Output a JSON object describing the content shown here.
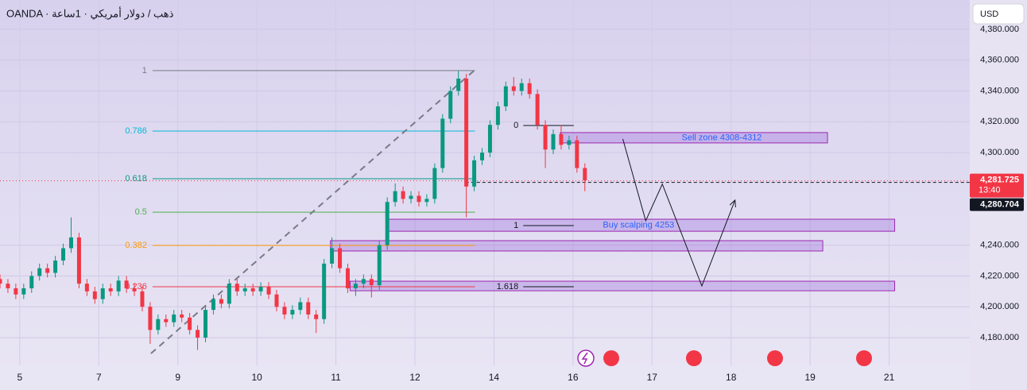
{
  "header": {
    "symbol": "OANDA · ذهب / دولار أمريكي · 1ساعة",
    "currency": "USD"
  },
  "chart_data": {
    "type": "candlestick",
    "up_color": "#089981",
    "down_color": "#f23645",
    "xlim": [
      -0.25,
      12.02
    ],
    "ylim": [
      4162,
      4399
    ],
    "xticks": [
      {
        "value": 0,
        "label": "5"
      },
      {
        "value": 1,
        "label": "7"
      },
      {
        "value": 2,
        "label": "9"
      },
      {
        "value": 3,
        "label": "10"
      },
      {
        "value": 4,
        "label": "11"
      },
      {
        "value": 5,
        "label": "12"
      },
      {
        "value": 6,
        "label": "14"
      },
      {
        "value": 7,
        "label": "16"
      },
      {
        "value": 8,
        "label": "17"
      },
      {
        "value": 9,
        "label": "18"
      },
      {
        "value": 10,
        "label": "19"
      },
      {
        "value": 11,
        "label": "21"
      }
    ],
    "yticks": [
      {
        "value": 4180,
        "label": "4,180.000"
      },
      {
        "value": 4200,
        "label": "4,200.000"
      },
      {
        "value": 4220,
        "label": "4,220.000"
      },
      {
        "value": 4240,
        "label": "4,240.000"
      },
      {
        "value": 4300,
        "label": "4,300.000"
      },
      {
        "value": 4320,
        "label": "4,320.000"
      },
      {
        "value": 4340,
        "label": "4,340.000"
      },
      {
        "value": 4360,
        "label": "4,360.000"
      },
      {
        "value": 4380,
        "label": "4,380.000"
      }
    ],
    "grid": true,
    "x": [
      -0.25,
      -0.15,
      -0.05,
      0.05,
      0.15,
      0.25,
      0.35,
      0.45,
      0.55,
      0.65,
      0.75,
      0.85,
      0.95,
      1.05,
      1.15,
      1.25,
      1.35,
      1.45,
      1.55,
      1.65,
      1.75,
      1.85,
      1.95,
      2.05,
      2.15,
      2.25,
      2.35,
      2.45,
      2.55,
      2.65,
      2.75,
      2.85,
      2.95,
      3.05,
      3.15,
      3.25,
      3.35,
      3.45,
      3.55,
      3.65,
      3.75,
      3.85,
      3.95,
      4.05,
      4.15,
      4.25,
      4.35,
      4.45,
      4.55,
      4.65,
      4.75,
      4.85,
      4.95,
      5.05,
      5.15,
      5.25,
      5.35,
      5.45,
      5.55,
      5.65,
      5.75,
      5.85,
      5.95,
      6.05,
      6.15,
      6.25,
      6.35,
      6.45,
      6.55,
      6.65,
      6.75,
      6.85,
      6.95,
      7.05,
      7.15
    ],
    "open": [
      4218,
      4215,
      4212,
      4208,
      4212,
      4220,
      4225,
      4222,
      4230,
      4238,
      4245,
      4215,
      4210,
      4205,
      4212,
      4210,
      4217,
      4212,
      4210,
      4200,
      4185,
      4192,
      4190,
      4195,
      4193,
      4185,
      4180,
      4198,
      4205,
      4202,
      4215,
      4210,
      4212,
      4210,
      4213,
      4208,
      4200,
      4195,
      4198,
      4203,
      4195,
      4192,
      4228,
      4238,
      4225,
      4212,
      4215,
      4218,
      4214,
      4240,
      4268,
      4275,
      4270,
      4272,
      4268,
      4270,
      4290,
      4322,
      4340,
      4348,
      4278,
      4295,
      4300,
      4318,
      4330,
      4343,
      4340,
      4345,
      4338,
      4318,
      4302,
      4312,
      4305,
      4308,
      4290
    ],
    "high": [
      4221,
      4218,
      4215,
      4215,
      4223,
      4228,
      4228,
      4233,
      4241,
      4258,
      4248,
      4218,
      4213,
      4215,
      4215,
      4220,
      4220,
      4215,
      4213,
      4203,
      4195,
      4195,
      4198,
      4198,
      4196,
      4188,
      4201,
      4208,
      4208,
      4218,
      4218,
      4215,
      4215,
      4216,
      4216,
      4211,
      4203,
      4201,
      4206,
      4206,
      4198,
      4231,
      4245,
      4241,
      4228,
      4218,
      4221,
      4221,
      4243,
      4271,
      4280,
      4278,
      4275,
      4275,
      4273,
      4293,
      4325,
      4343,
      4353,
      4351,
      4298,
      4303,
      4321,
      4333,
      4346,
      4349,
      4348,
      4348,
      4341,
      4321,
      4315,
      4318,
      4311,
      4311,
      4293
    ],
    "low": [
      4212,
      4209,
      4205,
      4205,
      4209,
      4217,
      4219,
      4219,
      4227,
      4235,
      4212,
      4207,
      4202,
      4202,
      4207,
      4207,
      4209,
      4207,
      4197,
      4176,
      4182,
      4187,
      4187,
      4190,
      4182,
      4172,
      4177,
      4195,
      4199,
      4199,
      4207,
      4207,
      4207,
      4207,
      4205,
      4197,
      4192,
      4192,
      4195,
      4192,
      4183,
      4189,
      4225,
      4222,
      4209,
      4207,
      4212,
      4206,
      4211,
      4237,
      4265,
      4267,
      4267,
      4265,
      4265,
      4267,
      4287,
      4319,
      4337,
      4258,
      4275,
      4292,
      4297,
      4315,
      4327,
      4337,
      4337,
      4335,
      4315,
      4290,
      4299,
      4302,
      4302,
      4287,
      4275
    ],
    "close": [
      4215,
      4212,
      4208,
      4212,
      4220,
      4225,
      4222,
      4230,
      4238,
      4245,
      4215,
      4210,
      4205,
      4212,
      4210,
      4217,
      4212,
      4210,
      4200,
      4185,
      4192,
      4190,
      4195,
      4193,
      4185,
      4180,
      4198,
      4205,
      4202,
      4215,
      4210,
      4212,
      4210,
      4213,
      4208,
      4200,
      4195,
      4198,
      4203,
      4195,
      4192,
      4228,
      4238,
      4225,
      4212,
      4215,
      4218,
      4214,
      4240,
      4268,
      4275,
      4270,
      4272,
      4268,
      4270,
      4290,
      4322,
      4340,
      4348,
      4278,
      4295,
      4300,
      4318,
      4330,
      4343,
      4340,
      4345,
      4338,
      4318,
      4302,
      4312,
      4305,
      4308,
      4290,
      4282
    ],
    "fib": {
      "x": [
        1.68,
        5.76
      ],
      "levels": [
        {
          "label": "1",
          "value": 4353.2,
          "color": "#787b86"
        },
        {
          "label": "0.786",
          "value": 4314,
          "color": "#00bcd4"
        },
        {
          "label": "0.618",
          "value": 4283.1,
          "color": "#089981"
        },
        {
          "label": "0.5",
          "value": 4261.4,
          "color": "#4caf50"
        },
        {
          "label": "0.382",
          "value": 4239.8,
          "color": "#ff9800"
        },
        {
          "label": "0.236",
          "value": 4213,
          "color": "#f23645"
        }
      ]
    },
    "fib2": {
      "x": [
        6.37,
        7.01
      ],
      "levels": [
        {
          "label": "0",
          "value": 4317.6
        },
        {
          "label": "1",
          "value": 4252.7
        },
        {
          "label": "1.618",
          "value": 4213
        }
      ]
    },
    "trend_line": {
      "x": [
        1.66,
        5.76
      ],
      "y": [
        4169.7,
        4353.7
      ]
    },
    "zones": [
      {
        "label": "Sell zone 4308-4312",
        "x": [
          6.84,
          10.22
        ],
        "top": 4313,
        "bottom": 4306.3
      },
      {
        "label": "Buy scalping 4253",
        "x": [
          4.65,
          11.07
        ],
        "top": 4256.8,
        "bottom": 4249
      },
      {
        "x": [
          3.93,
          10.16
        ],
        "top": 4242.9,
        "bottom": 4236.2
      },
      {
        "x": [
          4.18,
          11.07
        ],
        "top": 4216.6,
        "bottom": 4210.4
      }
    ],
    "projection": {
      "x": [
        7.63,
        7.92,
        8.13,
        8.63,
        9.05
      ],
      "y": [
        4308.9,
        4255.8,
        4279.6,
        4213.5,
        4269.2
      ]
    },
    "last_price": {
      "value": 4281.725,
      "label": "4,281.725"
    },
    "countdown": "13:40",
    "bid_price": {
      "value": 4280.704,
      "label": "4,280.704"
    }
  }
}
